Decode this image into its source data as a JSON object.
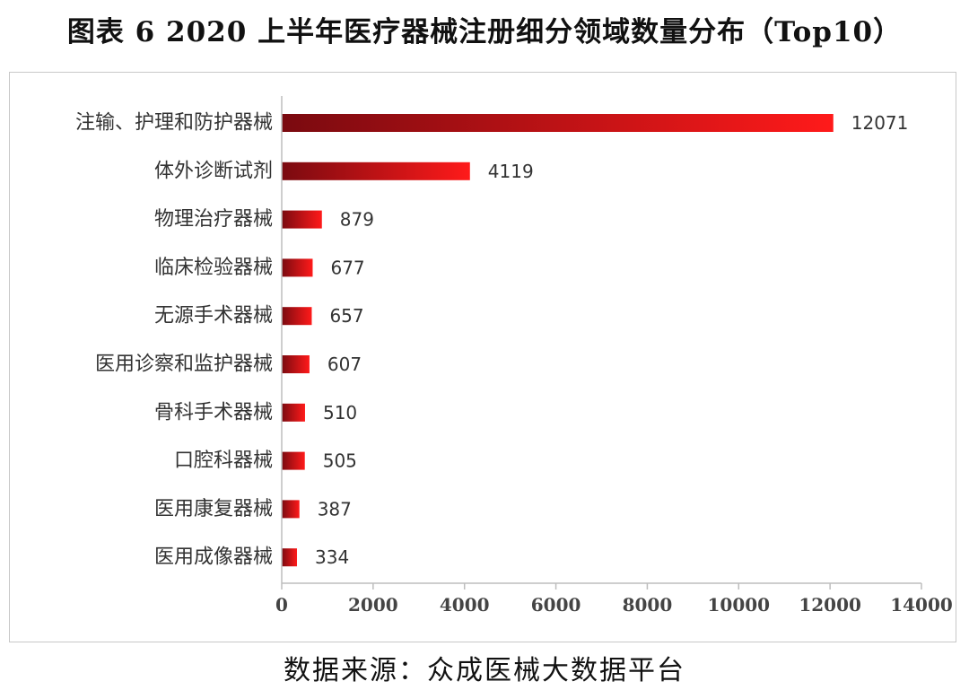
{
  "title": "图表 6   2020 上半年医疗器械注册细分领域数量分布（Top10）",
  "source": "数据来源：众成医械大数据平台",
  "colors": {
    "bar_dark": "#7a0a10",
    "bar_light": "#ff1a1a",
    "axis": "#bdbdbd",
    "text": "#333333"
  },
  "chart_data": {
    "type": "bar",
    "orientation": "horizontal",
    "categories": [
      "注输、护理和防护器械",
      "体外诊断试剂",
      "物理治疗器械",
      "临床检验器械",
      "无源手术器械",
      "医用诊察和监护器械",
      "骨科手术器械",
      "口腔科器械",
      "医用康复器械",
      "医用成像器械"
    ],
    "values": [
      12071,
      4119,
      879,
      677,
      657,
      607,
      510,
      505,
      387,
      334
    ],
    "data_labels": [
      "12071",
      "4119",
      "879",
      "677",
      "657",
      "607",
      "510",
      "505",
      "387",
      "334"
    ],
    "xlim": [
      0,
      14000
    ],
    "x_ticks": [
      "0",
      "2000",
      "4000",
      "6000",
      "8000",
      "10000",
      "12000",
      "14000"
    ],
    "grid": false,
    "legend": "none"
  }
}
